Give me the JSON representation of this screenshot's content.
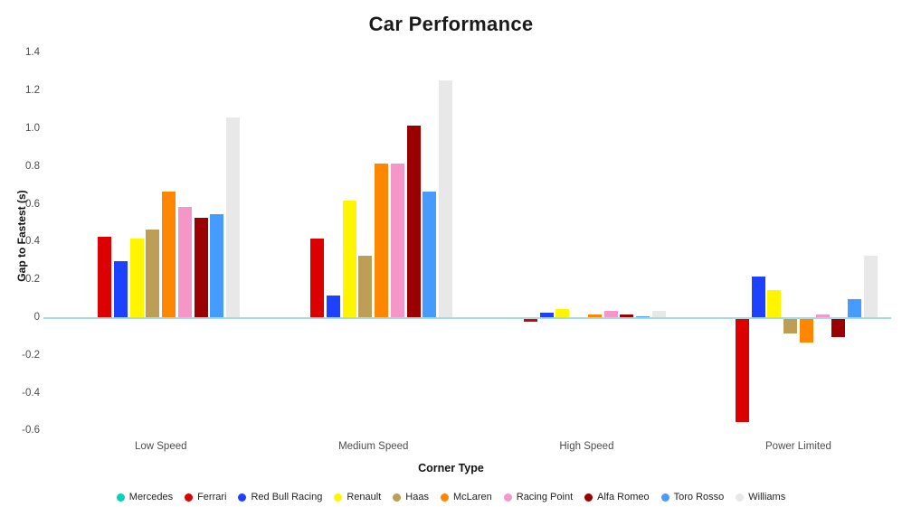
{
  "chart_data": {
    "type": "bar",
    "title": "Car Performance",
    "xlabel": "Corner Type",
    "ylabel": "Gap to Fastest (s)",
    "categories": [
      "Low Speed",
      "Medium Speed",
      "High Speed",
      "Power Limited"
    ],
    "series": [
      {
        "name": "Mercedes",
        "color": "#00D2BE",
        "values": [
          0.0,
          0.0,
          0.0,
          0.0
        ]
      },
      {
        "name": "Ferrari",
        "color": "#DC0000",
        "values": [
          0.43,
          0.42,
          -0.02,
          -0.55
        ]
      },
      {
        "name": "Red Bull Racing",
        "color": "#1E41FF",
        "values": [
          0.3,
          0.12,
          0.03,
          0.22
        ]
      },
      {
        "name": "Renault",
        "color": "#FFF500",
        "values": [
          0.42,
          0.62,
          0.05,
          0.15
        ]
      },
      {
        "name": "Haas",
        "color": "#BD9E57",
        "values": [
          0.47,
          0.33,
          0.0,
          -0.08
        ]
      },
      {
        "name": "McLaren",
        "color": "#FF8700",
        "values": [
          0.67,
          0.82,
          0.02,
          -0.13
        ]
      },
      {
        "name": "Racing Point",
        "color": "#F596C8",
        "values": [
          0.59,
          0.82,
          0.04,
          0.02
        ]
      },
      {
        "name": "Alfa Romeo",
        "color": "#9B0000",
        "values": [
          0.53,
          1.02,
          0.02,
          -0.1
        ]
      },
      {
        "name": "Toro Rosso",
        "color": "#469BFF",
        "values": [
          0.55,
          0.67,
          0.01,
          0.1
        ]
      },
      {
        "name": "Williams",
        "color": "#E8E8E8",
        "values": [
          1.06,
          1.26,
          0.04,
          0.33
        ]
      }
    ],
    "yticks": [
      1.4,
      1.2,
      1.0,
      0.8,
      0.6,
      0.4,
      0.2,
      0,
      -0.2,
      -0.4,
      -0.6
    ],
    "ylim": [
      -0.68,
      1.45
    ],
    "grid": false,
    "legend_position": "bottom",
    "zero_line_color": "#A5DBE8",
    "background_color": "#FFFFFF",
    "title_color": "#1A1A1A",
    "tick_label_color": "#4D4D4D"
  }
}
